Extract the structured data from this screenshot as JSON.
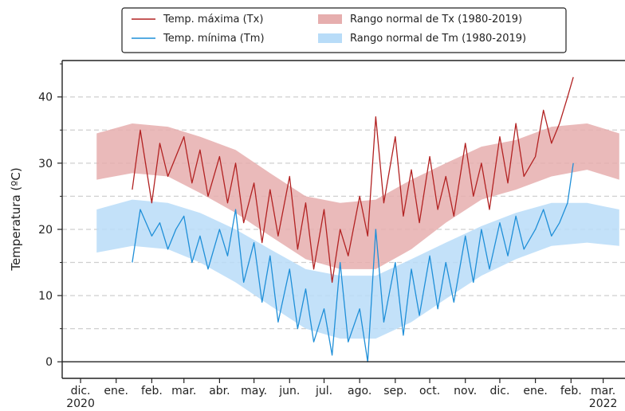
{
  "chart_data": {
    "type": "line",
    "ylabel": "Temperatura (ºC)",
    "ylim": [
      -2.5,
      45.5
    ],
    "yticks": [
      0,
      10,
      20,
      30,
      40
    ],
    "grid": "horizontal dashed",
    "legend_position": "top-center",
    "x_range": [
      "2020-11-15",
      "2022-03-20"
    ],
    "xticks": [
      {
        "date": "2020-12-01",
        "label": "dic.",
        "year": "2020"
      },
      {
        "date": "2021-01-01",
        "label": "ene.",
        "year": ""
      },
      {
        "date": "2021-02-01",
        "label": "feb.",
        "year": ""
      },
      {
        "date": "2021-03-01",
        "label": "mar.",
        "year": ""
      },
      {
        "date": "2021-04-01",
        "label": "abr.",
        "year": ""
      },
      {
        "date": "2021-05-01",
        "label": "may.",
        "year": ""
      },
      {
        "date": "2021-06-01",
        "label": "jun.",
        "year": ""
      },
      {
        "date": "2021-07-01",
        "label": "jul.",
        "year": ""
      },
      {
        "date": "2021-08-01",
        "label": "ago.",
        "year": ""
      },
      {
        "date": "2021-09-01",
        "label": "sep.",
        "year": ""
      },
      {
        "date": "2021-10-01",
        "label": "oct.",
        "year": ""
      },
      {
        "date": "2021-11-01",
        "label": "nov.",
        "year": ""
      },
      {
        "date": "2021-12-01",
        "label": "dic.",
        "year": ""
      },
      {
        "date": "2022-01-01",
        "label": "ene.",
        "year": ""
      },
      {
        "date": "2022-02-01",
        "label": "feb.",
        "year": ""
      },
      {
        "date": "2022-03-01",
        "label": "mar.",
        "year": "2022"
      }
    ],
    "legend": [
      {
        "label": "Temp. máxima (Tx)",
        "kind": "line",
        "color": "#b22222"
      },
      {
        "label": "Rango normal de Tx (1980-2019)",
        "kind": "band",
        "color": "#e6aeae"
      },
      {
        "label": "Temp. mínima (Tm)",
        "kind": "line",
        "color": "#1f8fd8"
      },
      {
        "label": "Rango normal de Tm (1980-2019)",
        "kind": "band",
        "color": "#b8dcf8"
      }
    ],
    "series": [
      {
        "name": "Temp. máxima (Tx)",
        "kind": "line",
        "color": "#b22222",
        "x": [
          "2021-01-15",
          "2021-01-22",
          "2021-02-01",
          "2021-02-08",
          "2021-02-15",
          "2021-02-22",
          "2021-03-01",
          "2021-03-08",
          "2021-03-15",
          "2021-03-22",
          "2021-04-01",
          "2021-04-08",
          "2021-04-15",
          "2021-04-22",
          "2021-05-01",
          "2021-05-08",
          "2021-05-15",
          "2021-05-22",
          "2021-06-01",
          "2021-06-08",
          "2021-06-15",
          "2021-06-22",
          "2021-07-01",
          "2021-07-08",
          "2021-07-15",
          "2021-07-22",
          "2021-08-01",
          "2021-08-08",
          "2021-08-15",
          "2021-08-22",
          "2021-09-01",
          "2021-09-08",
          "2021-09-15",
          "2021-09-22",
          "2021-10-01",
          "2021-10-08",
          "2021-10-15",
          "2021-10-22",
          "2021-11-01",
          "2021-11-08",
          "2021-11-15",
          "2021-11-22",
          "2021-12-01",
          "2021-12-08",
          "2021-12-15",
          "2021-12-22",
          "2022-01-01",
          "2022-01-08",
          "2022-01-15",
          "2022-01-22",
          "2022-01-29",
          "2022-02-03"
        ],
        "y": [
          26,
          35,
          24,
          33,
          28,
          31,
          34,
          27,
          32,
          25,
          31,
          24,
          30,
          21,
          27,
          18,
          26,
          19,
          28,
          17,
          24,
          14,
          23,
          12,
          20,
          16,
          25,
          19,
          37,
          24,
          34,
          22,
          29,
          21,
          31,
          23,
          28,
          22,
          33,
          25,
          30,
          23,
          34,
          27,
          36,
          28,
          31,
          38,
          33,
          36,
          40,
          43
        ]
      },
      {
        "name": "Temp. mínima (Tm)",
        "kind": "line",
        "color": "#1f8fd8",
        "x": [
          "2021-01-15",
          "2021-01-22",
          "2021-02-01",
          "2021-02-08",
          "2021-02-15",
          "2021-02-22",
          "2021-03-01",
          "2021-03-08",
          "2021-03-15",
          "2021-03-22",
          "2021-04-01",
          "2021-04-08",
          "2021-04-15",
          "2021-04-22",
          "2021-05-01",
          "2021-05-08",
          "2021-05-15",
          "2021-05-22",
          "2021-06-01",
          "2021-06-08",
          "2021-06-15",
          "2021-06-22",
          "2021-07-01",
          "2021-07-08",
          "2021-07-15",
          "2021-07-22",
          "2021-08-01",
          "2021-08-08",
          "2021-08-15",
          "2021-08-22",
          "2021-09-01",
          "2021-09-08",
          "2021-09-15",
          "2021-09-22",
          "2021-10-01",
          "2021-10-08",
          "2021-10-15",
          "2021-10-22",
          "2021-11-01",
          "2021-11-08",
          "2021-11-15",
          "2021-11-22",
          "2021-12-01",
          "2021-12-08",
          "2021-12-15",
          "2021-12-22",
          "2022-01-01",
          "2022-01-08",
          "2022-01-15",
          "2022-01-22",
          "2022-01-29",
          "2022-02-03"
        ],
        "y": [
          15,
          23,
          19,
          21,
          17,
          20,
          22,
          15,
          19,
          14,
          20,
          16,
          23,
          12,
          18,
          9,
          16,
          6,
          14,
          5,
          11,
          3,
          8,
          1,
          15,
          3,
          8,
          0,
          20,
          6,
          15,
          4,
          14,
          7,
          16,
          8,
          15,
          9,
          19,
          12,
          20,
          14,
          21,
          16,
          22,
          17,
          20,
          23,
          19,
          21,
          24,
          30
        ]
      },
      {
        "name": "Rango normal de Tx (1980-2019)",
        "kind": "band",
        "color": "#e6aeae",
        "x": [
          "2020-12-15",
          "2021-01-15",
          "2021-02-15",
          "2021-03-15",
          "2021-04-15",
          "2021-05-15",
          "2021-06-15",
          "2021-07-15",
          "2021-08-15",
          "2021-09-15",
          "2021-10-15",
          "2021-11-15",
          "2021-12-15",
          "2022-01-15",
          "2022-02-15",
          "2022-03-15"
        ],
        "low": [
          27.5,
          28.5,
          28,
          25.5,
          22.5,
          19,
          15.5,
          14,
          14,
          17,
          21,
          24.5,
          26,
          28,
          29,
          27.5
        ],
        "high": [
          34.5,
          36,
          35.5,
          34,
          32,
          28.5,
          25,
          24,
          24.5,
          27.5,
          30,
          32.5,
          33.5,
          35.5,
          36,
          34.5
        ]
      },
      {
        "name": "Rango normal de Tm (1980-2019)",
        "kind": "band",
        "color": "#b8dcf8",
        "x": [
          "2020-12-15",
          "2021-01-15",
          "2021-02-15",
          "2021-03-15",
          "2021-04-15",
          "2021-05-15",
          "2021-06-15",
          "2021-07-15",
          "2021-08-15",
          "2021-09-15",
          "2021-10-15",
          "2021-11-15",
          "2021-12-15",
          "2022-01-15",
          "2022-02-15",
          "2022-03-15"
        ],
        "low": [
          16.5,
          17.5,
          17,
          15,
          12,
          8.5,
          5,
          3.5,
          3.5,
          6,
          9.5,
          13,
          15.5,
          17.5,
          18,
          17.5
        ],
        "high": [
          23,
          24.5,
          24,
          22.5,
          20,
          17,
          14,
          13,
          13,
          15.5,
          18,
          20.5,
          22.5,
          24,
          24,
          23
        ]
      }
    ]
  }
}
